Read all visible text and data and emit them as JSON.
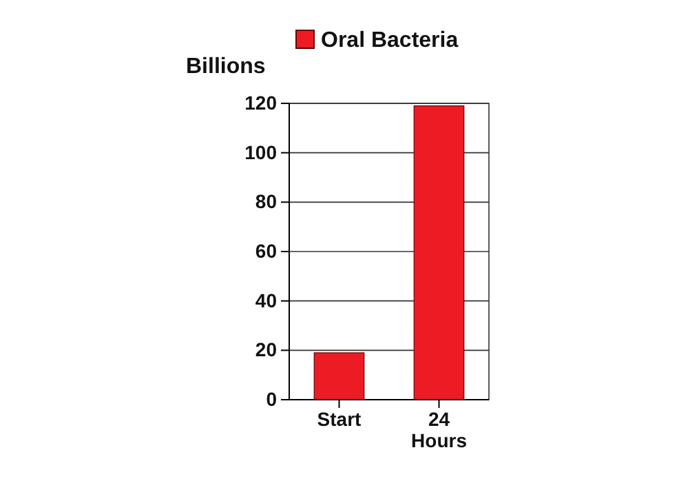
{
  "chart_data": {
    "type": "bar",
    "ylabel": "Billions",
    "categories": [
      "Start",
      "24 Hours"
    ],
    "series": [
      {
        "name": "Oral Bacteria",
        "color": "#ed1c24",
        "values": [
          19,
          119
        ]
      }
    ],
    "ylim": [
      0,
      120
    ],
    "yticks": [
      0,
      20,
      40,
      60,
      80,
      100,
      120
    ],
    "grid": "y",
    "legend": "top"
  }
}
